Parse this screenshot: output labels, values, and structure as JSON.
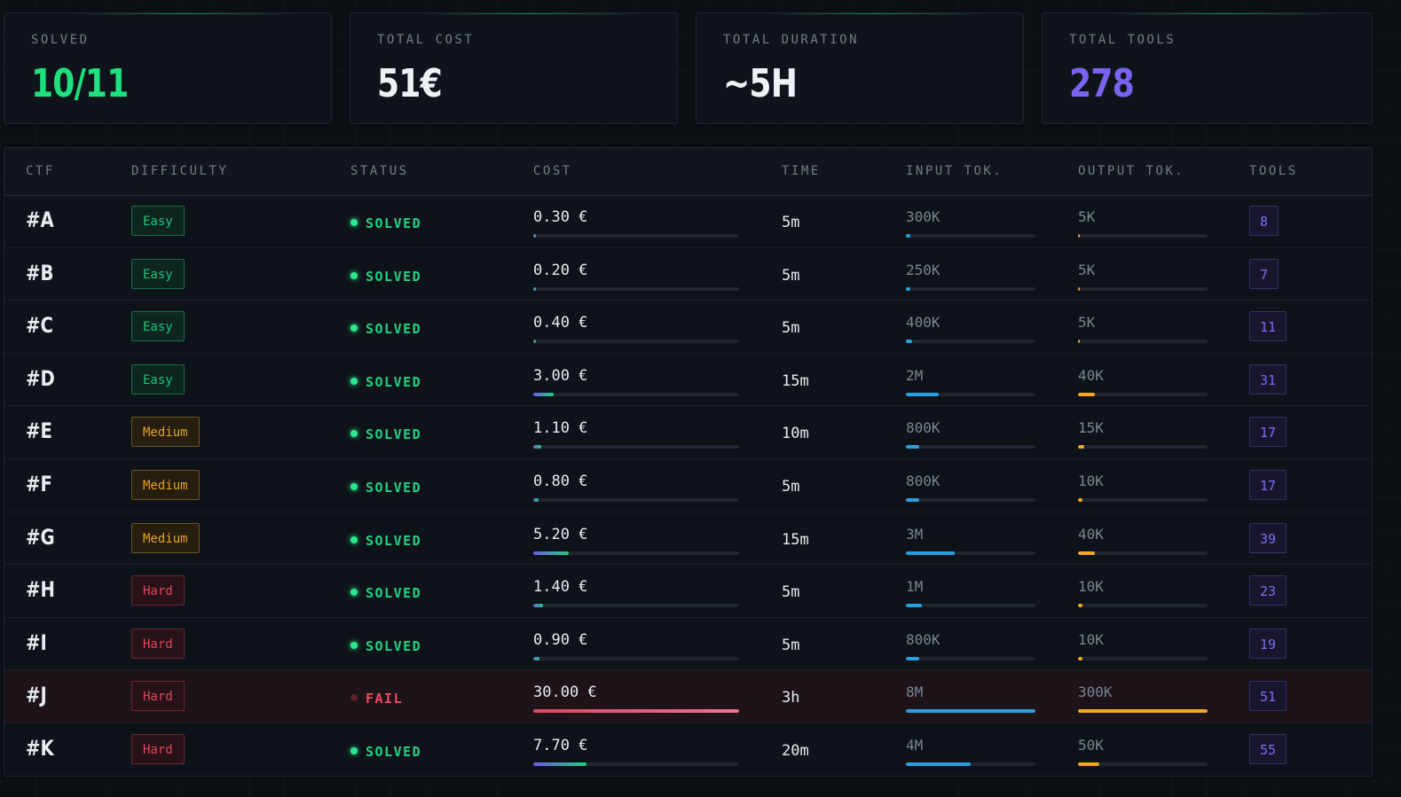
{
  "summary": [
    {
      "label": "SOLVED",
      "value": "10/11",
      "color": "#1ee07f"
    },
    {
      "label": "TOTAL COST",
      "value": "51€",
      "color": "#eef1f5"
    },
    {
      "label": "TOTAL DURATION",
      "value": "~5H",
      "color": "#eef1f5"
    },
    {
      "label": "TOTAL TOOLS",
      "value": "278",
      "color": "#7a63f0"
    }
  ],
  "table": {
    "headers": {
      "ctf": "CTF",
      "difficulty": "DIFFICULTY",
      "status": "STATUS",
      "cost": "COST",
      "time": "TIME",
      "input": "INPUT TOK.",
      "output": "OUTPUT TOK.",
      "tools": "TOOLS"
    },
    "rows": [
      {
        "ctf": "#A",
        "difficulty": "Easy",
        "level": "easy",
        "status": "SOLVED",
        "state": "solved",
        "cost": "0.30 €",
        "cost_fill": 0.01,
        "time": "5m",
        "input": "300K",
        "input_fill": 0.0375,
        "output": "5K",
        "output_fill": 0.017,
        "tools": "8"
      },
      {
        "ctf": "#B",
        "difficulty": "Easy",
        "level": "easy",
        "status": "SOLVED",
        "state": "solved",
        "cost": "0.20 €",
        "cost_fill": 0.007,
        "time": "5m",
        "input": "250K",
        "input_fill": 0.031,
        "output": "5K",
        "output_fill": 0.017,
        "tools": "7"
      },
      {
        "ctf": "#C",
        "difficulty": "Easy",
        "level": "easy",
        "status": "SOLVED",
        "state": "solved",
        "cost": "0.40 €",
        "cost_fill": 0.013,
        "time": "5m",
        "input": "400K",
        "input_fill": 0.05,
        "output": "5K",
        "output_fill": 0.017,
        "tools": "11"
      },
      {
        "ctf": "#D",
        "difficulty": "Easy",
        "level": "easy",
        "status": "SOLVED",
        "state": "solved",
        "cost": "3.00 €",
        "cost_fill": 0.1,
        "time": "15m",
        "input": "2M",
        "input_fill": 0.25,
        "output": "40K",
        "output_fill": 0.133,
        "tools": "31"
      },
      {
        "ctf": "#E",
        "difficulty": "Medium",
        "level": "medium",
        "status": "SOLVED",
        "state": "solved",
        "cost": "1.10 €",
        "cost_fill": 0.037,
        "time": "10m",
        "input": "800K",
        "input_fill": 0.1,
        "output": "15K",
        "output_fill": 0.05,
        "tools": "17"
      },
      {
        "ctf": "#F",
        "difficulty": "Medium",
        "level": "medium",
        "status": "SOLVED",
        "state": "solved",
        "cost": "0.80 €",
        "cost_fill": 0.027,
        "time": "5m",
        "input": "800K",
        "input_fill": 0.1,
        "output": "10K",
        "output_fill": 0.033,
        "tools": "17"
      },
      {
        "ctf": "#G",
        "difficulty": "Medium",
        "level": "medium",
        "status": "SOLVED",
        "state": "solved",
        "cost": "5.20 €",
        "cost_fill": 0.173,
        "time": "15m",
        "input": "3M",
        "input_fill": 0.375,
        "output": "40K",
        "output_fill": 0.133,
        "tools": "39"
      },
      {
        "ctf": "#H",
        "difficulty": "Hard",
        "level": "hard",
        "status": "SOLVED",
        "state": "solved",
        "cost": "1.40 €",
        "cost_fill": 0.047,
        "time": "5m",
        "input": "1M",
        "input_fill": 0.125,
        "output": "10K",
        "output_fill": 0.033,
        "tools": "23"
      },
      {
        "ctf": "#I",
        "difficulty": "Hard",
        "level": "hard",
        "status": "SOLVED",
        "state": "solved",
        "cost": "0.90 €",
        "cost_fill": 0.03,
        "time": "5m",
        "input": "800K",
        "input_fill": 0.1,
        "output": "10K",
        "output_fill": 0.033,
        "tools": "19"
      },
      {
        "ctf": "#J",
        "difficulty": "Hard",
        "level": "hard",
        "status": "FAIL",
        "state": "failed",
        "cost": "30.00 €",
        "cost_fill": 1.0,
        "time": "3h",
        "input": "8M",
        "input_fill": 1.0,
        "output": "300K",
        "output_fill": 1.0,
        "tools": "51"
      },
      {
        "ctf": "#K",
        "difficulty": "Hard",
        "level": "hard",
        "status": "SOLVED",
        "state": "solved",
        "cost": "7.70 €",
        "cost_fill": 0.257,
        "time": "20m",
        "input": "4M",
        "input_fill": 0.5,
        "output": "50K",
        "output_fill": 0.167,
        "tools": "55"
      }
    ]
  }
}
